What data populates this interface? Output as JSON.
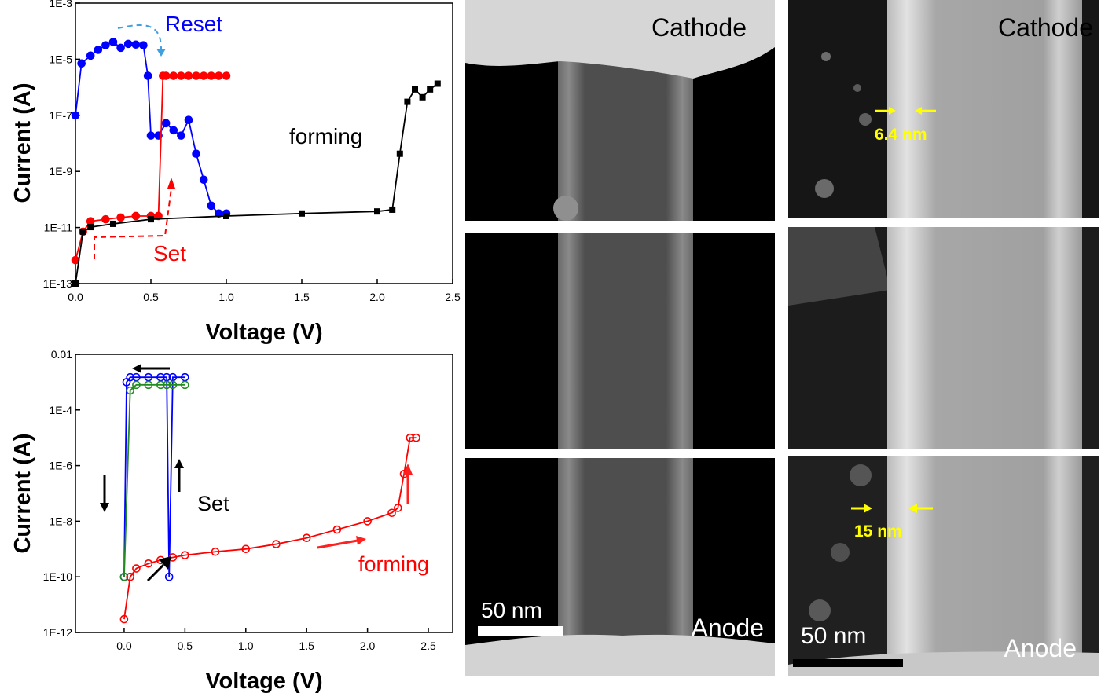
{
  "charts": {
    "top": {
      "ylabel": "Current (A)",
      "xlabel": "Voltage (V)",
      "yticks": [
        "1E-13",
        "1E-11",
        "1E-9",
        "1E-7",
        "1E-5",
        "1E-3"
      ],
      "xticks": [
        "0.0",
        "0.5",
        "1.0",
        "1.5",
        "2.0",
        "2.5"
      ],
      "annotations": {
        "reset": "Reset",
        "set": "Set",
        "forming": "forming"
      }
    },
    "bottom": {
      "ylabel": "Current (A)",
      "xlabel": "Voltage (V)",
      "yticks": [
        "1E-12",
        "1E-10",
        "1E-8",
        "1E-6",
        "1E-4",
        "0.01"
      ],
      "xticks": [
        "0.0",
        "0.5",
        "1.0",
        "1.5",
        "2.0",
        "2.5"
      ],
      "annotations": {
        "set": "Set",
        "forming": "forming"
      }
    }
  },
  "chart_data": [
    {
      "type": "line",
      "xlabel": "Voltage (V)",
      "ylabel": "Current (A)",
      "xlim": [
        0,
        2.5
      ],
      "ylim": [
        "1E-13",
        "1E-3"
      ],
      "yscale": "log",
      "series": [
        {
          "color": "#0000ff",
          "x": [
            0.0,
            0.04,
            0.1,
            0.15,
            0.2,
            0.25,
            0.3,
            0.35,
            0.4,
            0.45,
            0.48,
            0.5,
            0.55,
            0.6,
            0.65,
            0.7,
            0.75,
            0.8,
            0.85,
            0.9,
            0.95,
            1.0
          ],
          "y": [
            3e-07,
            3e-05,
            6e-05,
            0.0001,
            0.00015,
            0.0002,
            0.00012,
            0.00017,
            0.00016,
            0.00015,
            1e-05,
            5e-08,
            5e-08,
            1.5e-07,
            8e-08,
            5e-08,
            2e-07,
            1e-08,
            1e-09,
            1e-10,
            5e-11,
            5e-11
          ]
        },
        {
          "color": "#ff0000",
          "x": [
            0.0,
            0.05,
            0.1,
            0.2,
            0.3,
            0.4,
            0.5,
            0.55,
            0.58,
            0.6,
            0.65,
            0.7,
            0.75,
            0.8,
            0.85,
            0.9,
            0.95,
            1.0
          ],
          "y": [
            8e-13,
            1e-11,
            2.5e-11,
            3e-11,
            3.5e-11,
            4e-11,
            4e-11,
            4e-11,
            1e-05,
            1e-05,
            1e-05,
            1e-05,
            1e-05,
            1e-05,
            1e-05,
            1e-05,
            1e-05,
            1e-05
          ]
        },
        {
          "color": "#000000",
          "x": [
            0.0,
            0.05,
            0.1,
            0.25,
            0.5,
            1.0,
            1.5,
            2.0,
            2.1,
            2.15,
            2.2,
            2.25,
            2.3,
            2.35,
            2.4
          ],
          "y": [
            1e-13,
            1e-11,
            1.5e-11,
            2e-11,
            3e-11,
            4e-11,
            5e-11,
            6e-11,
            7e-11,
            1e-08,
            1e-06,
            3e-06,
            1.5e-06,
            3e-06,
            5e-06
          ]
        }
      ]
    },
    {
      "type": "line",
      "xlabel": "Voltage (V)",
      "ylabel": "Current (A)",
      "xlim": [
        -0.4,
        2.7
      ],
      "ylim": [
        "1E-12",
        "0.01"
      ],
      "yscale": "log",
      "series": [
        {
          "color": "#0000ff",
          "x": [
            0.0,
            0.02,
            0.05,
            0.1,
            0.2,
            0.3,
            0.35,
            0.37,
            0.4,
            0.5
          ],
          "y": [
            1e-10,
            0.001,
            0.0015,
            0.0015,
            0.0015,
            0.0015,
            0.0015,
            1e-10,
            0.0015,
            0.0015
          ]
        },
        {
          "color": "#228b22",
          "x": [
            0.0,
            0.05,
            0.1,
            0.2,
            0.3,
            0.35,
            0.4,
            0.5
          ],
          "y": [
            1e-10,
            0.0005,
            0.0008,
            0.0008,
            0.0008,
            0.0008,
            0.0008,
            0.0008
          ]
        },
        {
          "color": "#ff0000",
          "x": [
            0.0,
            0.05,
            0.1,
            0.2,
            0.3,
            0.4,
            0.5,
            0.75,
            1.0,
            1.25,
            1.5,
            1.75,
            2.0,
            2.2,
            2.25,
            2.3,
            2.35,
            2.4
          ],
          "y": [
            3e-12,
            1e-10,
            2e-10,
            3e-10,
            4e-10,
            5e-10,
            6e-10,
            8e-10,
            1e-09,
            1.5e-09,
            2.5e-09,
            5e-09,
            1e-08,
            2e-08,
            3e-08,
            5e-07,
            1e-05,
            1e-05
          ]
        }
      ]
    }
  ],
  "tem": {
    "left_col": {
      "cathode": "Cathode",
      "anode": "Anode",
      "scale": "50 nm"
    },
    "right_col": {
      "cathode": "Cathode",
      "anode": "Anode",
      "scale": "50 nm",
      "m1": "6.4 nm",
      "m2": "15 nm"
    }
  }
}
